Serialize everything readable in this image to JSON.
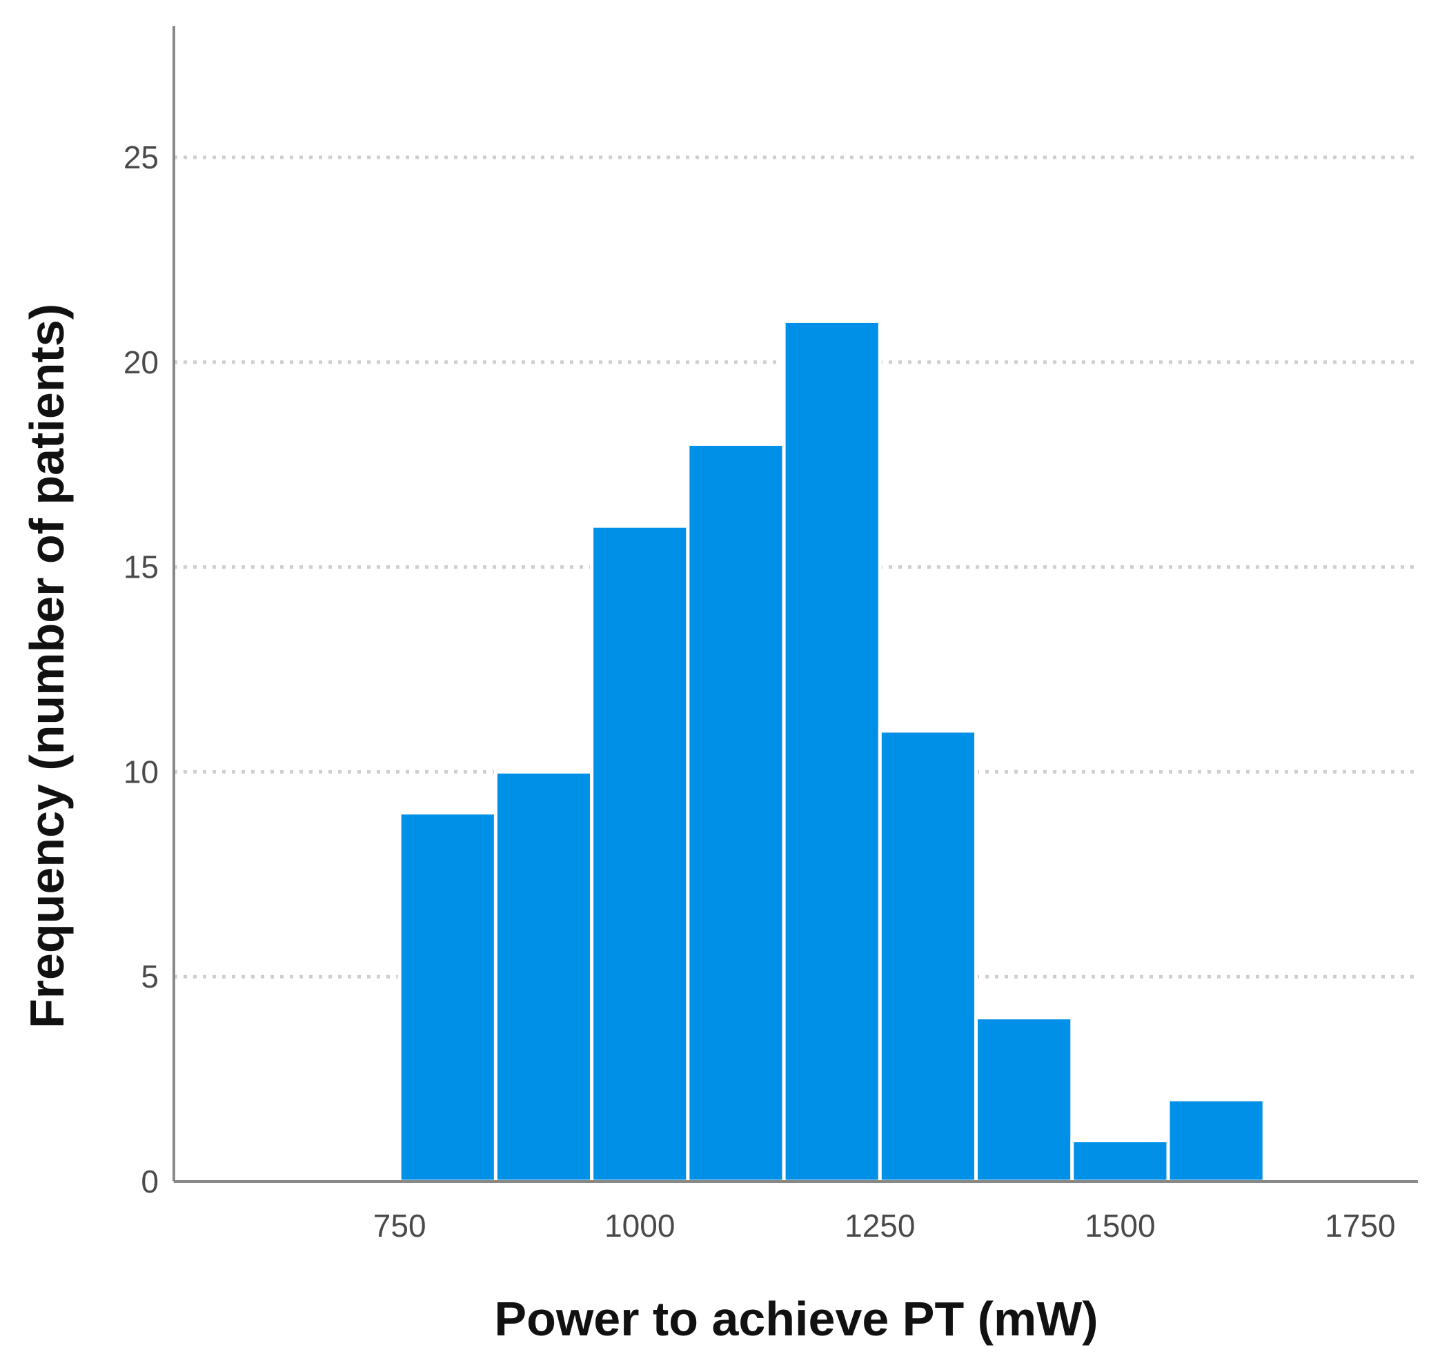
{
  "chart_data": {
    "type": "bar",
    "subtype": "histogram",
    "xlabel": "Power to achieve PT (mW)",
    "ylabel": "Frequency (number of patients)",
    "bins": [
      {
        "start": 750,
        "end": 850,
        "count": 9
      },
      {
        "start": 850,
        "end": 950,
        "count": 10
      },
      {
        "start": 950,
        "end": 1050,
        "count": 16
      },
      {
        "start": 1050,
        "end": 1150,
        "count": 18
      },
      {
        "start": 1150,
        "end": 1250,
        "count": 21
      },
      {
        "start": 1250,
        "end": 1350,
        "count": 11
      },
      {
        "start": 1350,
        "end": 1450,
        "count": 4
      },
      {
        "start": 1450,
        "end": 1550,
        "count": 1
      },
      {
        "start": 1550,
        "end": 1650,
        "count": 2
      }
    ],
    "xlim": [
      515,
      1810
    ],
    "ylim": [
      0,
      28.2
    ],
    "x_ticks": [
      750,
      1000,
      1250,
      1500,
      1750
    ],
    "y_ticks": [
      0,
      5,
      10,
      15,
      20,
      25
    ],
    "grid": "horizontal dotted",
    "legend": "none",
    "colors": {
      "bar": "#0090e8",
      "bar_edge": "#ffffff",
      "axis": "#888888",
      "grid": "#cfcfcf"
    }
  }
}
